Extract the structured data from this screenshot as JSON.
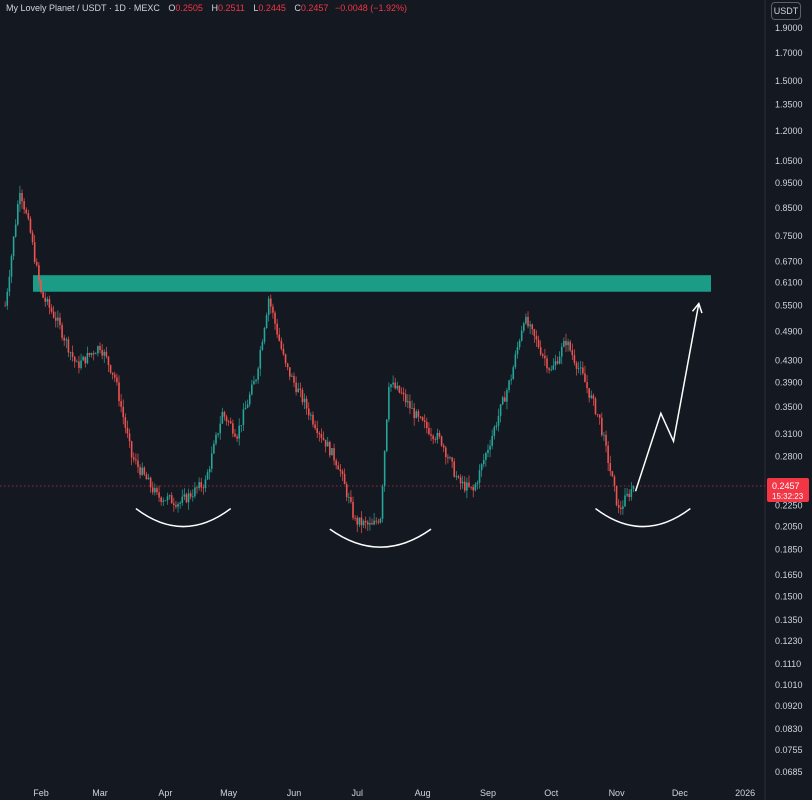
{
  "header": {
    "symbol": "My Lovely Planet / USDT · 1D · MEXC",
    "open_label": "O",
    "open": "0.2505",
    "high_label": "H",
    "high": "0.2511",
    "low_label": "L",
    "low": "0.2445",
    "close_label": "C",
    "close": "0.2457",
    "change": "−0.0048 (−1.92%)"
  },
  "currency_button": "USDT",
  "colors": {
    "background": "#141821",
    "up": "#26a69a",
    "down": "#ef5350",
    "resistance_zone": "#1a9c86",
    "price_tag": "#f23645",
    "annotation": "#ffffff"
  },
  "chart_data": {
    "type": "candlestick",
    "scale": "log",
    "ylim": [
      0.0685,
      1.9
    ],
    "y_ticks": [
      "1.9000",
      "1.7000",
      "1.5000",
      "1.3500",
      "1.2000",
      "1.0500",
      "0.9500",
      "0.8500",
      "0.7500",
      "0.6700",
      "0.6100",
      "0.5500",
      "0.4900",
      "0.4300",
      "0.3900",
      "0.3500",
      "0.3100",
      "0.2800",
      "0.2250",
      "0.2050",
      "0.1850",
      "0.1650",
      "0.1500",
      "0.1350",
      "0.1230",
      "0.1110",
      "0.1010",
      "0.0920",
      "0.0830",
      "0.0755",
      "0.0685"
    ],
    "x_ticks": [
      "Feb",
      "Mar",
      "Apr",
      "May",
      "Jun",
      "Jul",
      "Aug",
      "Sep",
      "Oct",
      "Nov",
      "Dec",
      "2026"
    ],
    "current_price": "0.2457",
    "countdown": "15:32:23",
    "resistance_zone": {
      "low": 0.585,
      "high": 0.63
    },
    "price_path": [
      {
        "date": "2025-01-15",
        "price": 0.55
      },
      {
        "date": "2025-01-22",
        "price": 0.93
      },
      {
        "date": "2025-01-27",
        "price": 0.76
      },
      {
        "date": "2025-02-01",
        "price": 0.58
      },
      {
        "date": "2025-02-08",
        "price": 0.52
      },
      {
        "date": "2025-02-18",
        "price": 0.42
      },
      {
        "date": "2025-03-01",
        "price": 0.46
      },
      {
        "date": "2025-03-08",
        "price": 0.4
      },
      {
        "date": "2025-03-16",
        "price": 0.28
      },
      {
        "date": "2025-03-28",
        "price": 0.235
      },
      {
        "date": "2025-04-08",
        "price": 0.228
      },
      {
        "date": "2025-04-20",
        "price": 0.25
      },
      {
        "date": "2025-04-28",
        "price": 0.34
      },
      {
        "date": "2025-05-05",
        "price": 0.31
      },
      {
        "date": "2025-05-14",
        "price": 0.4
      },
      {
        "date": "2025-05-20",
        "price": 0.57
      },
      {
        "date": "2025-05-28",
        "price": 0.42
      },
      {
        "date": "2025-06-10",
        "price": 0.33
      },
      {
        "date": "2025-06-22",
        "price": 0.27
      },
      {
        "date": "2025-06-30",
        "price": 0.21
      },
      {
        "date": "2025-07-08",
        "price": 0.205
      },
      {
        "date": "2025-07-12",
        "price": 0.215
      },
      {
        "date": "2025-07-16",
        "price": 0.39
      },
      {
        "date": "2025-07-22",
        "price": 0.37
      },
      {
        "date": "2025-07-30",
        "price": 0.33
      },
      {
        "date": "2025-08-10",
        "price": 0.3
      },
      {
        "date": "2025-08-18",
        "price": 0.25
      },
      {
        "date": "2025-08-25",
        "price": 0.24
      },
      {
        "date": "2025-09-02",
        "price": 0.3
      },
      {
        "date": "2025-09-12",
        "price": 0.4
      },
      {
        "date": "2025-09-18",
        "price": 0.52
      },
      {
        "date": "2025-09-25",
        "price": 0.46
      },
      {
        "date": "2025-10-01",
        "price": 0.41
      },
      {
        "date": "2025-10-08",
        "price": 0.47
      },
      {
        "date": "2025-10-16",
        "price": 0.4
      },
      {
        "date": "2025-10-24",
        "price": 0.33
      },
      {
        "date": "2025-11-02",
        "price": 0.22
      },
      {
        "date": "2025-11-09",
        "price": 0.2457
      }
    ],
    "annotations": {
      "cup_arcs": [
        {
          "from": "2025-03-18",
          "to": "2025-05-02",
          "price": 0.205
        },
        {
          "from": "2025-06-18",
          "to": "2025-08-05",
          "price": 0.187
        },
        {
          "from": "2025-10-22",
          "to": "2025-12-06",
          "price": 0.205
        }
      ],
      "projection_arrow": [
        {
          "date": "2025-11-10",
          "price": 0.24
        },
        {
          "date": "2025-11-22",
          "price": 0.34
        },
        {
          "date": "2025-11-28",
          "price": 0.3
        },
        {
          "date": "2025-12-10",
          "price": 0.555
        }
      ]
    }
  }
}
